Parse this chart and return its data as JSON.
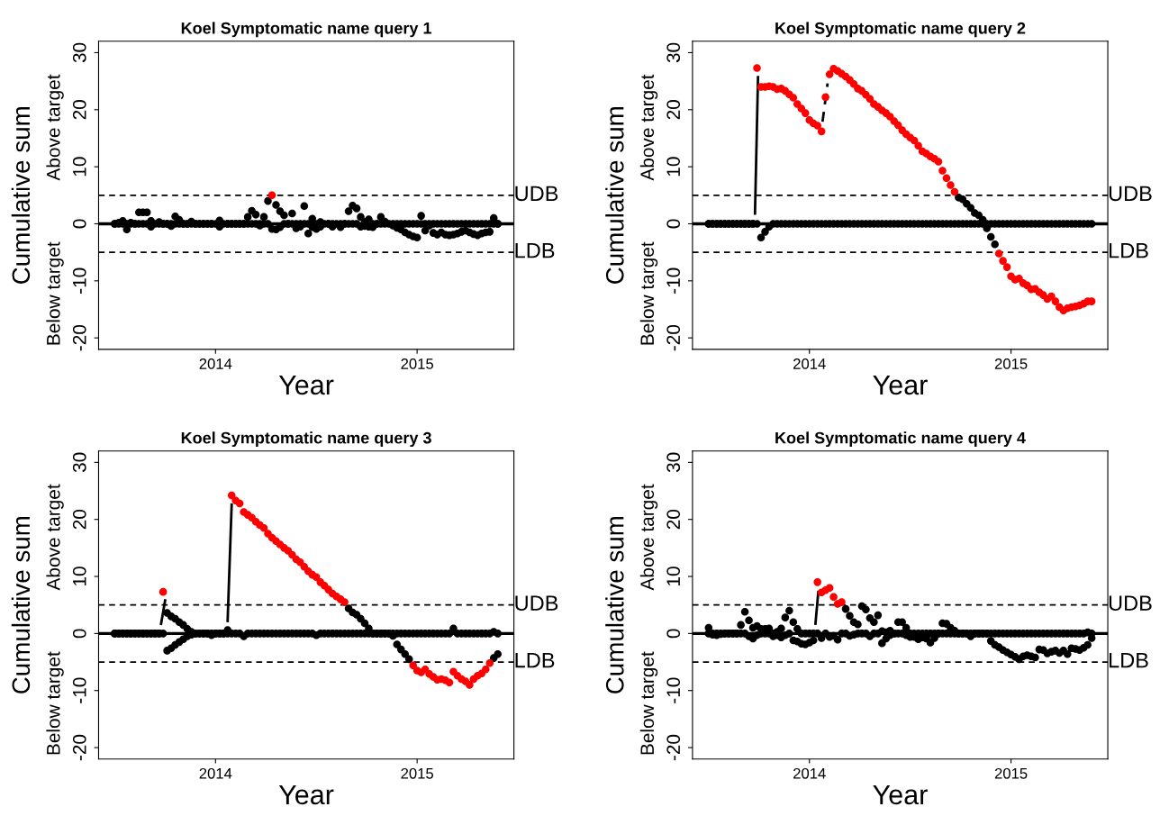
{
  "chart_data": [
    {
      "type": "scatter",
      "title": "Koel Symptomatic name query 1",
      "xlabel": "Year",
      "ylabel": "Cumulative sum",
      "annotations": [
        "Above target",
        "Below target"
      ],
      "marker": "circle",
      "grid": false,
      "xlim": [
        2013.42,
        2015.48
      ],
      "xticks": [
        2014,
        2015
      ],
      "ylim": [
        -22,
        32
      ],
      "yticks": [
        -20,
        -10,
        0,
        10,
        20,
        30
      ],
      "ref_lines": [
        {
          "axis": "y",
          "value": 5,
          "label": "UDB",
          "color": "#000000",
          "line_style": "dashed"
        },
        {
          "axis": "y",
          "value": -5,
          "label": "LDB",
          "color": "#000000",
          "line_style": "dashed"
        },
        {
          "axis": "y",
          "value": 0,
          "label": null,
          "color": "#000000",
          "line_style": "solid"
        }
      ],
      "x": [
        2013.5,
        2013.52,
        2013.54,
        2013.56,
        2013.58,
        2013.6,
        2013.62,
        2013.64,
        2013.66,
        2013.68,
        2013.7,
        2013.72,
        2013.74,
        2013.76,
        2013.78,
        2013.8,
        2013.82,
        2013.84,
        2013.86,
        2013.88,
        2013.9,
        2013.92,
        2013.94,
        2013.96,
        2013.98,
        2014.0,
        2014.02,
        2014.04,
        2014.06,
        2014.08,
        2014.1,
        2014.12,
        2014.14,
        2014.16,
        2014.18,
        2014.2,
        2014.22,
        2014.24,
        2014.26,
        2014.28,
        2014.3,
        2014.32,
        2014.34,
        2014.36,
        2014.38,
        2014.4,
        2014.42,
        2014.44,
        2014.46,
        2014.48,
        2014.5,
        2014.52,
        2014.54,
        2014.56,
        2014.58,
        2014.6,
        2014.62,
        2014.64,
        2014.66,
        2014.68,
        2014.7,
        2014.72,
        2014.74,
        2014.76,
        2014.78,
        2014.8,
        2014.82,
        2014.84,
        2014.86,
        2014.88,
        2014.9,
        2014.92,
        2014.94,
        2014.96,
        2014.98,
        2015.0,
        2015.02,
        2015.04,
        2015.06,
        2015.08,
        2015.1,
        2015.12,
        2015.14,
        2015.16,
        2015.18,
        2015.2,
        2015.22,
        2015.24,
        2015.26,
        2015.28,
        2015.3,
        2015.32,
        2015.34,
        2015.36,
        2015.38,
        2015.4
      ],
      "series": [
        {
          "color": "#000000",
          "values": [
            0,
            0.2,
            0.5,
            0,
            0.2,
            0,
            2,
            2,
            2,
            0.5,
            0,
            0.3,
            0,
            0,
            0,
            1.3,
            0.7,
            0,
            0,
            0.4,
            0,
            0,
            0,
            0,
            0,
            0,
            0.6,
            0,
            0,
            0,
            0,
            0,
            0,
            1.2,
            2.3,
            1.6,
            0,
            1.2,
            4.0,
            null,
            3.3,
            2.2,
            1.5,
            0,
            1.8,
            0,
            0,
            3.1,
            0,
            0.9,
            0,
            0.3,
            0,
            0,
            0,
            0,
            0,
            0,
            2.2,
            3.2,
            2.7,
            1.2,
            0.3,
            0.8,
            0,
            0,
            1.2,
            0.4,
            0,
            0,
            0,
            0,
            0,
            0,
            0,
            0,
            1.4,
            0,
            0,
            0,
            0,
            0,
            0,
            0,
            0,
            0,
            0,
            0,
            0,
            0,
            0,
            0,
            0,
            0,
            1.0,
            0
          ]
        },
        {
          "color": "#ff0000",
          "x": [
            2014.28
          ],
          "values": [
            5.0
          ]
        },
        {
          "color": "#000000",
          "values": [
            0,
            0,
            0,
            -1.0,
            0,
            0,
            0,
            0,
            0,
            -0.5,
            null,
            0,
            0,
            0,
            -0.4,
            0,
            0,
            0,
            0,
            0,
            0,
            0,
            0,
            0,
            0,
            null,
            -0.5,
            null,
            0,
            0,
            0,
            0,
            0,
            0,
            0,
            0,
            -0.3,
            0,
            0,
            -0.9,
            -1.0,
            -0.6,
            0,
            0,
            0,
            -0.8,
            -0.5,
            0,
            -1.7,
            -0.6,
            -0.9,
            -0.5,
            null,
            0,
            -0.5,
            null,
            -0.6,
            0,
            0,
            0,
            0,
            -0.5,
            -0.4,
            -0.5,
            -0.6,
            0,
            0,
            0,
            null,
            -0.3,
            -0.7,
            -1.0,
            -1.5,
            -1.9,
            -2.2,
            -2.4,
            0,
            -1.2,
            -0.3,
            -1.6,
            -1.9,
            -1.5,
            -1.9,
            -2.0,
            -1.9,
            -1.7,
            -1.4,
            -1.2,
            -1.5,
            -1.8,
            -2.0,
            -1.7,
            -1.5,
            -1.4,
            0,
            0
          ]
        }
      ]
    },
    {
      "type": "scatter",
      "title": "Koel Symptomatic name query 2",
      "xlabel": "Year",
      "ylabel": "Cumulative sum",
      "annotations": [
        "Above target",
        "Below target"
      ],
      "marker": "circle",
      "grid": false,
      "xlim": [
        2013.42,
        2015.48
      ],
      "xticks": [
        2014,
        2015
      ],
      "ylim": [
        -22,
        32
      ],
      "yticks": [
        -20,
        -10,
        0,
        10,
        20,
        30
      ],
      "ref_lines": [
        {
          "axis": "y",
          "value": 5,
          "label": "UDB",
          "color": "#000000",
          "line_style": "dashed"
        },
        {
          "axis": "y",
          "value": -5,
          "label": "LDB",
          "color": "#000000",
          "line_style": "dashed"
        },
        {
          "axis": "y",
          "value": 0,
          "label": null,
          "color": "#000000",
          "line_style": "solid"
        }
      ],
      "x": [
        2013.5,
        2013.52,
        2013.54,
        2013.56,
        2013.58,
        2013.6,
        2013.62,
        2013.64,
        2013.66,
        2013.68,
        2013.7,
        2013.72,
        2013.74,
        2013.76,
        2013.78,
        2013.8,
        2013.82,
        2013.84,
        2013.86,
        2013.88,
        2013.9,
        2013.92,
        2013.94,
        2013.96,
        2013.98,
        2014.0,
        2014.02,
        2014.04,
        2014.06,
        2014.08,
        2014.1,
        2014.12,
        2014.14,
        2014.16,
        2014.18,
        2014.2,
        2014.22,
        2014.24,
        2014.26,
        2014.28,
        2014.3,
        2014.32,
        2014.34,
        2014.36,
        2014.38,
        2014.4,
        2014.42,
        2014.44,
        2014.46,
        2014.48,
        2014.5,
        2014.52,
        2014.54,
        2014.56,
        2014.58,
        2014.6,
        2014.62,
        2014.64,
        2014.66,
        2014.68,
        2014.7,
        2014.72,
        2014.74,
        2014.76,
        2014.78,
        2014.8,
        2014.82,
        2014.84,
        2014.86,
        2014.88,
        2014.9,
        2014.92,
        2014.94,
        2014.96,
        2014.98,
        2015.0,
        2015.02,
        2015.04,
        2015.06,
        2015.08,
        2015.1,
        2015.12,
        2015.14,
        2015.16,
        2015.18,
        2015.2,
        2015.22,
        2015.24,
        2015.26,
        2015.28,
        2015.3,
        2015.32,
        2015.34,
        2015.36,
        2015.38,
        2015.4
      ],
      "series": [
        {
          "type": "line",
          "marker": "none",
          "color": "#000000",
          "line_style": "solid",
          "x": [
            2013.73,
            2013.745
          ],
          "values": [
            1.8,
            25.7
          ]
        },
        {
          "type": "line",
          "marker": "none",
          "color": "#000000",
          "line_style": "dashed",
          "x": [
            2014.065,
            2014.09
          ],
          "values": [
            17.9,
            24.6
          ]
        },
        {
          "color": "#000000",
          "values": [
            0,
            0,
            0,
            0,
            0,
            0,
            0,
            0,
            0,
            0,
            0,
            0,
            null,
            null,
            null,
            null,
            null,
            null,
            null,
            null,
            null,
            null,
            null,
            null,
            null,
            null,
            null,
            null,
            null,
            null,
            null,
            null,
            null,
            null,
            null,
            null,
            null,
            null,
            null,
            null,
            null,
            null,
            null,
            null,
            null,
            null,
            null,
            null,
            null,
            null,
            null,
            null,
            null,
            null,
            null,
            null,
            null,
            null,
            null,
            null,
            null,
            null,
            4.6,
            4.3,
            3.5,
            2.8,
            1.9,
            1.5,
            0.7,
            0,
            0,
            0,
            0,
            0,
            0,
            0,
            0,
            0,
            0,
            0,
            0,
            0,
            0,
            0,
            0,
            0,
            0,
            0,
            0,
            0,
            0,
            0,
            0,
            0,
            0,
            0
          ]
        },
        {
          "color": "#ff0000",
          "x": [
            2013.74,
            2013.76,
            2013.78,
            2013.8,
            2013.82,
            2013.84,
            2013.86,
            2013.88,
            2013.9,
            2013.92,
            2013.94,
            2013.96,
            2013.98,
            2014.0,
            2014.02,
            2014.04,
            2014.06,
            2014.08,
            2014.1,
            2014.12,
            2014.14,
            2014.16,
            2014.18,
            2014.2,
            2014.22,
            2014.24,
            2014.26,
            2014.28,
            2014.3,
            2014.32,
            2014.34,
            2014.36,
            2014.38,
            2014.4,
            2014.42,
            2014.44,
            2014.46,
            2014.48,
            2014.5,
            2014.52,
            2014.54,
            2014.56,
            2014.58,
            2014.6,
            2014.62,
            2014.64,
            2014.66,
            2014.68,
            2014.7,
            2014.72
          ],
          "values": [
            27.3,
            24.0,
            24.0,
            24.1,
            24.0,
            23.6,
            23.7,
            23.3,
            22.7,
            22.1,
            21.0,
            20.2,
            19.4,
            18.2,
            17.6,
            17.2,
            16.2,
            22.2,
            26.2,
            27.2,
            26.8,
            26.3,
            25.8,
            25.2,
            24.5,
            23.7,
            23.3,
            22.6,
            21.9,
            21.0,
            20.5,
            19.9,
            19.4,
            18.8,
            18.0,
            17.3,
            16.4,
            15.7,
            15.1,
            14.6,
            13.7,
            12.7,
            12.3,
            11.8,
            11.4,
            10.9,
            9.3,
            8.0,
            6.8,
            5.6
          ]
        },
        {
          "color": "#000000",
          "values": [
            0,
            0,
            0,
            0,
            0,
            0,
            0,
            0,
            0,
            0,
            0,
            0,
            0,
            -2.4,
            -1.4,
            -0.5,
            0,
            0,
            0,
            0,
            0,
            0,
            0,
            0,
            0,
            0,
            0,
            0,
            0,
            0,
            0,
            0,
            0,
            0,
            0,
            0,
            0,
            0,
            0,
            0,
            0,
            0,
            0,
            0,
            0,
            0,
            0,
            0,
            0,
            0,
            0,
            0,
            0,
            0,
            0,
            0,
            0,
            0,
            0,
            0,
            0,
            0,
            0,
            0,
            0,
            0,
            0,
            0,
            0,
            -0.8,
            -2.3,
            -3.6,
            null,
            null,
            null,
            null,
            null,
            null,
            null,
            null,
            null,
            null,
            null,
            null,
            null,
            null,
            null,
            null,
            null,
            null,
            null,
            null,
            null,
            null,
            null,
            null
          ]
        },
        {
          "color": "#ff0000",
          "x": [
            2014.94,
            2014.96,
            2014.98,
            2015.0,
            2015.02,
            2015.04,
            2015.06,
            2015.08,
            2015.1,
            2015.12,
            2015.14,
            2015.16,
            2015.18,
            2015.2,
            2015.22,
            2015.24,
            2015.26,
            2015.28,
            2015.3,
            2015.32,
            2015.34,
            2015.36,
            2015.38,
            2015.4
          ],
          "values": [
            -5.2,
            -6.5,
            -7.6,
            -9.2,
            -9.8,
            -9.6,
            -10.4,
            -10.8,
            -11.5,
            -11.4,
            -12.0,
            -12.5,
            -13.2,
            -12.7,
            -13.6,
            -14.6,
            -15.2,
            -14.8,
            -14.6,
            -14.5,
            -14.3,
            -14.0,
            -13.6,
            -13.6
          ]
        }
      ]
    },
    {
      "type": "scatter",
      "title": "Koel Symptomatic name query 3",
      "xlabel": "Year",
      "ylabel": "Cumulative sum",
      "annotations": [
        "Above target",
        "Below target"
      ],
      "marker": "circle",
      "grid": false,
      "xlim": [
        2013.42,
        2015.48
      ],
      "xticks": [
        2014,
        2015
      ],
      "ylim": [
        -22,
        32
      ],
      "yticks": [
        -20,
        -10,
        0,
        10,
        20,
        30
      ],
      "ref_lines": [
        {
          "axis": "y",
          "value": 5,
          "label": "UDB",
          "color": "#000000",
          "line_style": "dashed"
        },
        {
          "axis": "y",
          "value": -5,
          "label": "LDB",
          "color": "#000000",
          "line_style": "dashed"
        },
        {
          "axis": "y",
          "value": 0,
          "label": null,
          "color": "#000000",
          "line_style": "solid"
        }
      ],
      "x": [
        2013.5,
        2013.52,
        2013.54,
        2013.56,
        2013.58,
        2013.6,
        2013.62,
        2013.64,
        2013.66,
        2013.68,
        2013.7,
        2013.72,
        2013.74,
        2013.76,
        2013.78,
        2013.8,
        2013.82,
        2013.84,
        2013.86,
        2013.88,
        2013.9,
        2013.92,
        2013.94,
        2013.96,
        2013.98,
        2014.0,
        2014.02,
        2014.04,
        2014.06,
        2014.08,
        2014.1,
        2014.12,
        2014.14,
        2014.16,
        2014.18,
        2014.2,
        2014.22,
        2014.24,
        2014.26,
        2014.28,
        2014.3,
        2014.32,
        2014.34,
        2014.36,
        2014.38,
        2014.4,
        2014.42,
        2014.44,
        2014.46,
        2014.48,
        2014.5,
        2014.52,
        2014.54,
        2014.56,
        2014.58,
        2014.6,
        2014.62,
        2014.64,
        2014.66,
        2014.68,
        2014.7,
        2014.72,
        2014.74,
        2014.76,
        2014.78,
        2014.8,
        2014.82,
        2014.84,
        2014.86,
        2014.88,
        2014.9,
        2014.92,
        2014.94,
        2014.96,
        2014.98,
        2015.0,
        2015.02,
        2015.04,
        2015.06,
        2015.08,
        2015.1,
        2015.12,
        2015.14,
        2015.16,
        2015.18,
        2015.2,
        2015.22,
        2015.24,
        2015.26,
        2015.28,
        2015.3,
        2015.32,
        2015.34,
        2015.36,
        2015.38,
        2015.4
      ],
      "series": [
        {
          "type": "line",
          "marker": "none",
          "color": "#000000",
          "line_style": "solid",
          "x": [
            2013.73,
            2013.75
          ],
          "values": [
            1.7,
            5.8
          ]
        },
        {
          "type": "line",
          "marker": "none",
          "color": "#000000",
          "line_style": "solid",
          "x": [
            2014.06,
            2014.08
          ],
          "values": [
            2.2,
            22.6
          ]
        },
        {
          "color": "#000000",
          "values": [
            0,
            0,
            0,
            0,
            0,
            0,
            0,
            0,
            0,
            0,
            0,
            0,
            null,
            3.6,
            3.0,
            2.6,
            2.0,
            1.5,
            0.8,
            0.3,
            0,
            0,
            0,
            0,
            0,
            0,
            0,
            0,
            0.6,
            null,
            null,
            null,
            null,
            null,
            null,
            null,
            null,
            null,
            null,
            null,
            null,
            null,
            null,
            null,
            null,
            null,
            null,
            null,
            null,
            null,
            null,
            null,
            null,
            null,
            null,
            null,
            null,
            null,
            4.4,
            3.7,
            3.3,
            2.6,
            1.8,
            0.9,
            0,
            0,
            0,
            0,
            0,
            0,
            0,
            0,
            0,
            0,
            0,
            0,
            0,
            0,
            0,
            0,
            0,
            0,
            0,
            0,
            0.9,
            0,
            0,
            0,
            0,
            0,
            0,
            0,
            0,
            0,
            0.3,
            0
          ]
        },
        {
          "color": "#ff0000",
          "x": [
            2013.74,
            2014.08,
            2014.1,
            2014.12,
            2014.14,
            2014.16,
            2014.18,
            2014.2,
            2014.22,
            2014.24,
            2014.26,
            2014.28,
            2014.3,
            2014.32,
            2014.34,
            2014.36,
            2014.38,
            2014.4,
            2014.42,
            2014.44,
            2014.46,
            2014.48,
            2014.5,
            2014.52,
            2014.54,
            2014.56,
            2014.58,
            2014.6,
            2014.62,
            2014.64
          ],
          "values": [
            7.3,
            24.2,
            23.3,
            22.8,
            21.3,
            20.8,
            20.3,
            19.6,
            19.0,
            18.5,
            17.5,
            16.8,
            16.2,
            15.6,
            15.0,
            14.5,
            13.8,
            13.0,
            12.5,
            11.7,
            10.9,
            10.3,
            9.9,
            9.0,
            8.4,
            7.7,
            7.0,
            6.5,
            6.0,
            5.5
          ]
        },
        {
          "color": "#000000",
          "values": [
            0,
            0,
            0,
            0,
            0,
            0,
            0,
            0,
            0,
            0,
            0,
            0,
            0,
            -3.0,
            -2.6,
            -2.0,
            -1.5,
            -1.0,
            -0.5,
            -0.2,
            0,
            0,
            0,
            0,
            -0.3,
            0,
            0,
            0,
            0,
            0,
            0,
            0,
            -0.5,
            0,
            0,
            0,
            0,
            0,
            0,
            0,
            0,
            0,
            0,
            0,
            0,
            0,
            0,
            0,
            0,
            0,
            -0.3,
            0,
            0,
            0,
            0,
            0,
            0,
            0,
            0,
            0,
            0,
            0,
            0,
            0,
            0,
            0,
            0,
            0,
            0,
            -0.4,
            -1.9,
            -2.8,
            -3.6,
            -4.5,
            null,
            null,
            null,
            null,
            null,
            null,
            null,
            null,
            null,
            null,
            null,
            null,
            null,
            null,
            null,
            null,
            null,
            null,
            null,
            null,
            -4.3,
            -3.6
          ]
        },
        {
          "color": "#ff0000",
          "x": [
            2014.98,
            2015.0,
            2015.02,
            2015.04,
            2015.06,
            2015.08,
            2015.1,
            2015.12,
            2015.14,
            2015.16,
            2015.18,
            2015.2,
            2015.22,
            2015.24,
            2015.26,
            2015.28,
            2015.3,
            2015.32,
            2015.34,
            2015.36
          ],
          "values": [
            -5.6,
            -6.5,
            -6.8,
            -6.3,
            -7.1,
            -7.6,
            -8.1,
            -8.0,
            -8.2,
            -8.6,
            -6.7,
            -7.4,
            -8.0,
            -8.4,
            -9.0,
            -8.0,
            -7.4,
            -7.0,
            -6.3,
            -5.2
          ]
        }
      ]
    },
    {
      "type": "scatter",
      "title": "Koel Symptomatic name query 4",
      "xlabel": "Year",
      "ylabel": "Cumulative sum",
      "annotations": [
        "Above target",
        "Below target"
      ],
      "marker": "circle",
      "grid": false,
      "xlim": [
        2013.42,
        2015.48
      ],
      "xticks": [
        2014,
        2015
      ],
      "ylim": [
        -22,
        32
      ],
      "yticks": [
        -20,
        -10,
        0,
        10,
        20,
        30
      ],
      "ref_lines": [
        {
          "axis": "y",
          "value": 5,
          "label": "UDB",
          "color": "#000000",
          "line_style": "dashed"
        },
        {
          "axis": "y",
          "value": -5,
          "label": "LDB",
          "color": "#000000",
          "line_style": "dashed"
        },
        {
          "axis": "y",
          "value": 0,
          "label": null,
          "color": "#000000",
          "line_style": "solid"
        }
      ],
      "x": [
        2013.5,
        2013.52,
        2013.54,
        2013.56,
        2013.58,
        2013.6,
        2013.62,
        2013.64,
        2013.66,
        2013.68,
        2013.7,
        2013.72,
        2013.74,
        2013.76,
        2013.78,
        2013.8,
        2013.82,
        2013.84,
        2013.86,
        2013.88,
        2013.9,
        2013.92,
        2013.94,
        2013.96,
        2013.98,
        2014.0,
        2014.02,
        2014.04,
        2014.06,
        2014.08,
        2014.1,
        2014.12,
        2014.14,
        2014.16,
        2014.18,
        2014.2,
        2014.22,
        2014.24,
        2014.26,
        2014.28,
        2014.3,
        2014.32,
        2014.34,
        2014.36,
        2014.38,
        2014.4,
        2014.42,
        2014.44,
        2014.46,
        2014.48,
        2014.5,
        2014.52,
        2014.54,
        2014.56,
        2014.58,
        2014.6,
        2014.62,
        2014.64,
        2014.66,
        2014.68,
        2014.7,
        2014.72,
        2014.74,
        2014.76,
        2014.78,
        2014.8,
        2014.82,
        2014.84,
        2014.86,
        2014.88,
        2014.9,
        2014.92,
        2014.94,
        2014.96,
        2014.98,
        2015.0,
        2015.02,
        2015.04,
        2015.06,
        2015.08,
        2015.1,
        2015.12,
        2015.14,
        2015.16,
        2015.18,
        2015.2,
        2015.22,
        2015.24,
        2015.26,
        2015.28,
        2015.3,
        2015.32,
        2015.34,
        2015.36,
        2015.38,
        2015.4
      ],
      "series": [
        {
          "type": "line",
          "marker": "none",
          "color": "#000000",
          "line_style": "solid",
          "x": [
            2014.03,
            2014.044
          ],
          "values": [
            1.7,
            7.3
          ]
        },
        {
          "color": "#000000",
          "values": [
            1.0,
            0,
            0,
            0,
            0,
            0,
            0,
            0,
            1.5,
            3.8,
            2.3,
            1.0,
            1.3,
            0.8,
            0.8,
            0.9,
            0,
            0.3,
            0.9,
            2.8,
            4.0,
            2.0,
            0.8,
            0,
            0,
            0,
            0,
            null,
            null,
            null,
            null,
            null,
            null,
            null,
            4.3,
            3.1,
            2.0,
            1.6,
            4.8,
            4.2,
            2.7,
            2.0,
            3.2,
            0.4,
            0.2,
            0.5,
            0,
            2.0,
            2.0,
            1.0,
            0,
            0,
            0,
            0,
            0,
            0,
            0,
            0,
            1.8,
            1.7,
            1.0,
            0.5,
            0,
            0,
            0,
            0,
            0,
            0,
            0,
            0,
            0,
            0,
            0,
            0,
            0,
            0,
            0,
            0,
            0,
            0,
            0,
            0,
            0,
            0,
            0,
            0,
            0,
            0,
            0,
            0,
            0,
            0,
            0,
            0,
            0.2,
            0
          ]
        },
        {
          "color": "#ff0000",
          "x": [
            2014.04,
            2014.06,
            2014.08,
            2014.1,
            2014.12,
            2014.14,
            2014.16
          ],
          "values": [
            9.0,
            7.2,
            7.6,
            8.0,
            6.4,
            5.2,
            5.5
          ]
        },
        {
          "color": "#000000",
          "values": [
            0,
            -0.2,
            -0.3,
            -0.1,
            0,
            0,
            0,
            0,
            0,
            0,
            -0.5,
            -0.9,
            -0.3,
            0,
            0,
            0,
            -0.5,
            -0.3,
            -0.7,
            -0.3,
            0,
            -1.2,
            -1.4,
            -1.8,
            -1.9,
            -1.6,
            -1.2,
            0,
            -0.8,
            0,
            -0.6,
            -0.4,
            -1.1,
            0,
            0,
            -0.4,
            -0.2,
            0,
            0,
            0,
            -0.5,
            0,
            0,
            -1.7,
            -0.9,
            -0.3,
            0,
            0,
            0,
            -0.3,
            -0.6,
            -0.6,
            -1.0,
            -0.7,
            -0.9,
            -1.6,
            -0.8,
            0,
            0,
            0,
            0,
            0,
            0,
            0,
            0,
            -0.5,
            0,
            0,
            0,
            0,
            -1.3,
            -2.0,
            -2.4,
            -2.9,
            -3.3,
            -3.7,
            -4.1,
            -4.5,
            -4.0,
            -3.8,
            -4.0,
            -4.2,
            -2.8,
            -2.9,
            -3.5,
            -3.2,
            -3.0,
            -3.4,
            -3.0,
            -3.6,
            -2.6,
            -2.7,
            -2.9,
            -2.5,
            -2.0,
            -0.8
          ]
        }
      ]
    }
  ]
}
